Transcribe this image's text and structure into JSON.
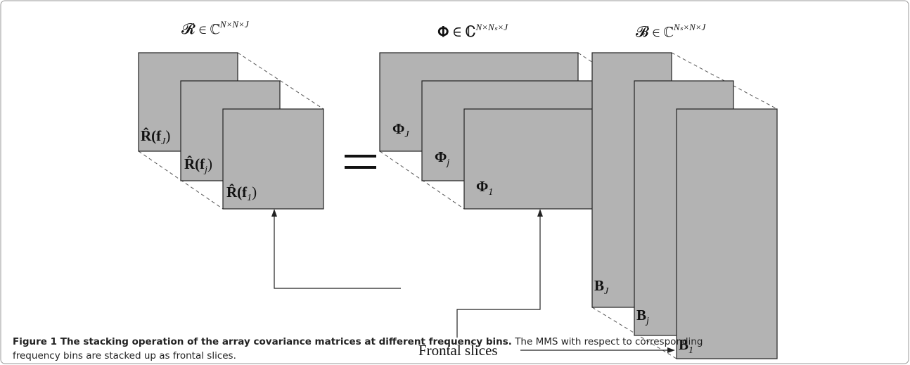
{
  "tensors": [
    {
      "symbol": "𝓡 ∈ ℂ",
      "exponent": "N×N×J"
    },
    {
      "symbol": "𝚽 ∈ ℂ",
      "exponent": "N×Nₛ×J"
    },
    {
      "symbol": "𝓑 ∈ ℂ",
      "exponent": "Nₛ×N×J"
    }
  ],
  "slices": [
    {
      "main": "R̂(f",
      "sub": "J",
      "tail": ")"
    },
    {
      "main": "R̂(f",
      "sub": "j",
      "tail": ")"
    },
    {
      "main": "R̂(f",
      "sub": "1",
      "tail": ")"
    },
    {
      "main": "Φ",
      "sub": "J",
      "tail": ""
    },
    {
      "main": "Φ",
      "sub": "j",
      "tail": ""
    },
    {
      "main": "Φ",
      "sub": "1",
      "tail": ""
    },
    {
      "main": "B",
      "sub": "J",
      "tail": ""
    },
    {
      "main": "B",
      "sub": "j",
      "tail": ""
    },
    {
      "main": "B",
      "sub": "1",
      "tail": ""
    }
  ],
  "arrow_label": "Frontal slices",
  "caption": {
    "label": "Figure 1 The stacking operation of the array covariance matrices at different frequency bins.",
    "text_line1": "The MMS with respect to corresponding",
    "text_line2": "frequency bins are stacked up as frontal slices."
  }
}
